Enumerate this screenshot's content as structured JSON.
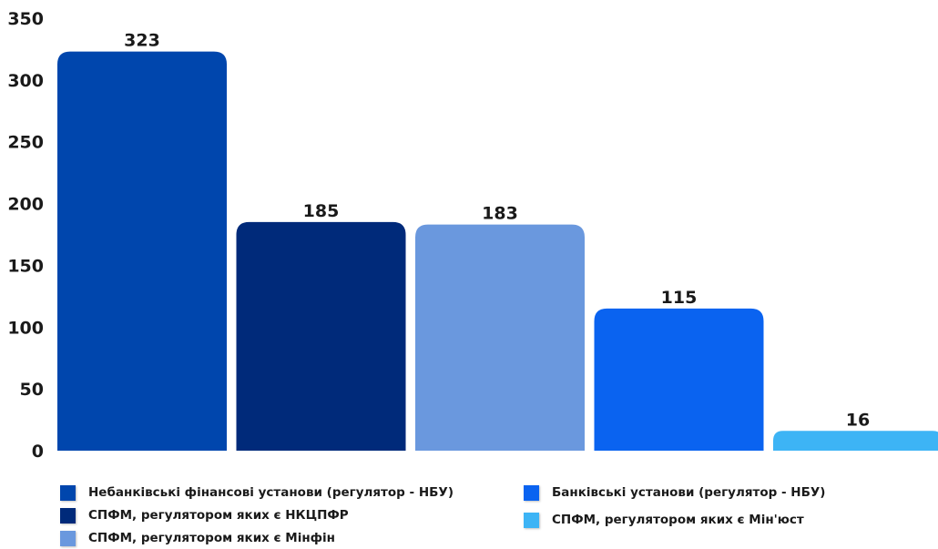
{
  "chart_data": {
    "type": "bar",
    "title": "",
    "xlabel": "",
    "ylabel": "",
    "ylim": [
      0,
      350
    ],
    "yticks": [
      0,
      50,
      100,
      150,
      200,
      250,
      300,
      350
    ],
    "grid": false,
    "legend_position": "bottom",
    "categories": [
      "Небанківські фінансові установи (регулятор - НБУ)",
      "СПФМ, регулятором яких є НКЦПФР",
      "СПФМ, регулятором яких є Мінфін",
      "Банківські установи (регулятор - НБУ)",
      "СПФМ, регулятором яких є Мін'юст"
    ],
    "values": [
      323,
      185,
      183,
      115,
      16
    ],
    "colors": [
      "#0046ad",
      "#002a7a",
      "#6a98de",
      "#0a63f0",
      "#3db4f5"
    ]
  },
  "legend": {
    "items": [
      {
        "label": "Небанківські фінансові установи (регулятор - НБУ)",
        "color": "#0046ad"
      },
      {
        "label": "СПФМ, регулятором яких є НКЦПФР",
        "color": "#002a7a"
      },
      {
        "label": "СПФМ, регулятором яких є Мінфін",
        "color": "#6a98de"
      },
      {
        "label": "Банківські установи (регулятор - НБУ)",
        "color": "#0a63f0"
      },
      {
        "label": "СПФМ, регулятором яких є Мін'юст",
        "color": "#3db4f5"
      }
    ]
  }
}
